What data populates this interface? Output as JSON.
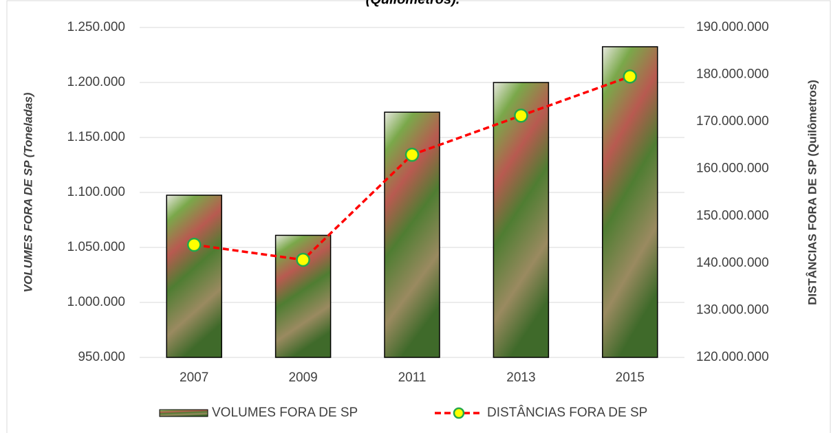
{
  "chart_data": {
    "type": "bar_line",
    "title": "(Quilômetros).",
    "y_label": "VOLUMES FORA DE SP (Toneladas)",
    "y2_label": "DISTÂNCIAS FORA DE SP (Quilômetros)",
    "categories": [
      "2007",
      "2009",
      "2011",
      "2013",
      "2015"
    ],
    "series": [
      {
        "name": "VOLUMES FORA DE SP",
        "type": "bar",
        "color": "#4f7d32",
        "values": [
          1097500,
          1061000,
          1173000,
          1200000,
          1232500
        ]
      },
      {
        "name": "DISTÂNCIAS FORA DE SP",
        "type": "line",
        "axis": "y2",
        "color": "#ff0000",
        "marker_color": "#ffff00",
        "marker_edge": "#22a84a",
        "values": [
          143900000,
          140700000,
          163000000,
          171300000,
          179600000
        ]
      }
    ],
    "ylim": [
      950000,
      1250000
    ],
    "yticks": [
      {
        "value": 950000,
        "label": "950.000"
      },
      {
        "value": 1000000,
        "label": "1.000.000"
      },
      {
        "value": 1050000,
        "label": "1.050.000"
      },
      {
        "value": 1100000,
        "label": "1.100.000"
      },
      {
        "value": 1150000,
        "label": "1.150.000"
      },
      {
        "value": 1200000,
        "label": "1.200.000"
      },
      {
        "value": 1250000,
        "label": "1.250.000"
      }
    ],
    "y2lim": [
      120000000,
      190000000
    ],
    "y2ticks": [
      {
        "value": 120000000,
        "label": "120.000.000"
      },
      {
        "value": 130000000,
        "label": "130.000.000"
      },
      {
        "value": 140000000,
        "label": "140.000.000"
      },
      {
        "value": 150000000,
        "label": "150.000.000"
      },
      {
        "value": 160000000,
        "label": "160.000.000"
      },
      {
        "value": 170000000,
        "label": "170.000.000"
      },
      {
        "value": 180000000,
        "label": "180.000.000"
      },
      {
        "value": 190000000,
        "label": "190.000.000"
      }
    ],
    "grid": true,
    "legend": "bottom"
  }
}
